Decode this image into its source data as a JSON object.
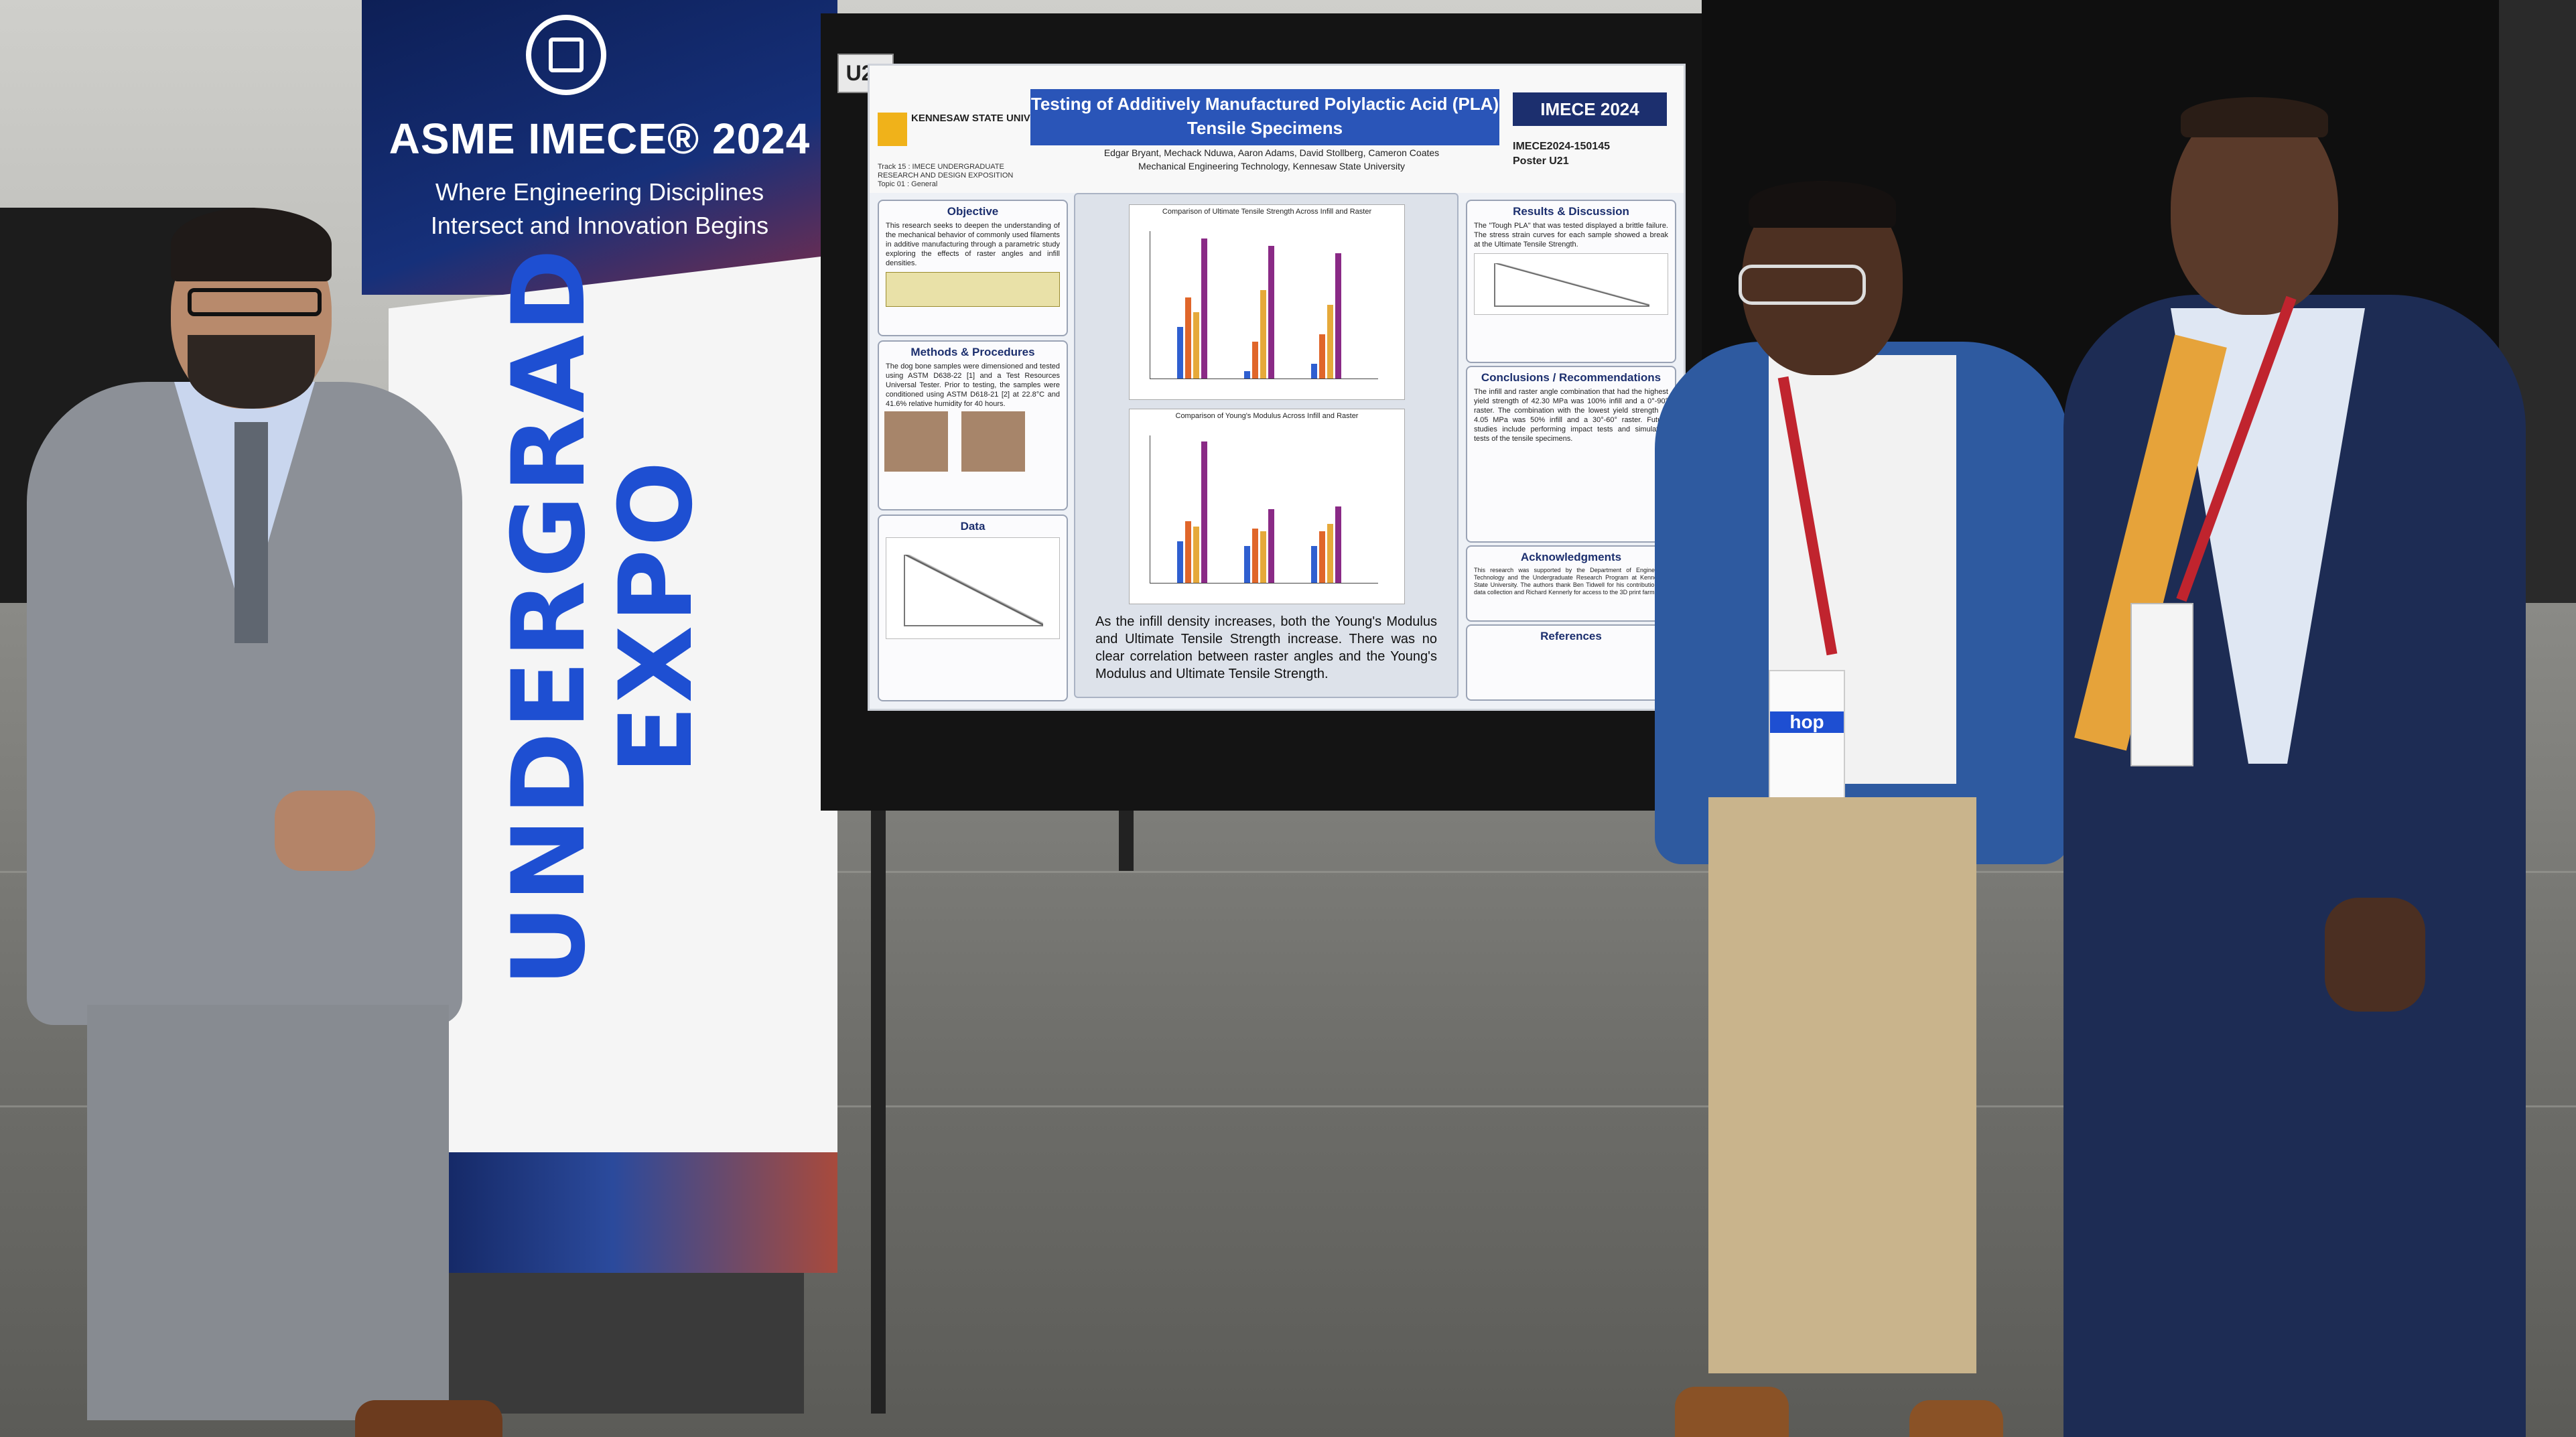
{
  "banner": {
    "conference": "ASME IMECE® 2024",
    "tagline": "Where Engineering Disciplines Intersect and Innovation Begins",
    "vertical_text_line1": "UNDERGRAD",
    "vertical_text_line2": "EXPO",
    "colors": {
      "navy": "#16307a",
      "blue_text": "#1e4fd2",
      "white": "#f5f5f5"
    }
  },
  "board": {
    "tag": "U21"
  },
  "poster": {
    "university": "KENNESAW STATE UNIVERSITY",
    "title": "Testing of Additively Manufactured Polylactic Acid (PLA) Tensile Specimens",
    "conference_badge": "IMECE 2024",
    "authors": "Edgar Bryant, Mechack Nduwa, Aaron Adams, David Stollberg, Cameron Coates",
    "department": "Mechanical Engineering Technology, Kennesaw State University",
    "paper_id": "IMECE2024-150145",
    "poster_id": "Poster U21",
    "track": "Track 15 : IMECE UNDERGRADUATE RESEARCH AND DESIGN EXPOSITION",
    "topic": "Topic 01 : General",
    "sections": {
      "objective_title": "Objective",
      "objective_text": "This research seeks to deepen the understanding of the mechanical behavior of commonly used filaments in additive manufacturing through a parametric study exploring the effects of raster angles and infill densities.",
      "methods_title": "Methods & Procedures",
      "methods_text": "The dog bone samples were dimensioned and tested using ASTM D638-22 [1] and a Test Resources Universal Tester. Prior to testing, the samples were conditioned using ASTM D618-21 [2] at 22.8°C and 41.6% relative humidity for 40 hours.",
      "data_title": "Data",
      "results_title": "Results & Discussion",
      "results_text": "The \"Tough PLA\" that was tested displayed a brittle failure. The stress strain curves for each sample showed a break at the Ultimate Tensile Strength.",
      "conclusions_title": "Conclusions / Recommendations",
      "conclusions_text": "The infill and raster angle combination that had the highest yield strength of 42.30 MPa was 100% infill and a 0°-90° raster. The combination with the lowest yield strength of 4.05 MPa was 50% infill and a 30°-60° raster. Future studies include performing impact tests and simulation tests of the tensile specimens.",
      "ack_title": "Acknowledgments",
      "ack_text": "This research was supported by the Department of Engineering Technology and the Undergraduate Research Program at Kennesaw State University. The authors thank Ben Tidwell for his contributions to data collection and Richard Kennerly for access to the 3D print farm.",
      "references_title": "References"
    },
    "center_text": "As the infill density increases, both the Young's Modulus and Ultimate Tensile Strength increase. There was no clear correlation between raster angles and the Young's Modulus and Ultimate Tensile Strength.",
    "chart1_title": "Comparison of Ultimate Tensile Strength Across Infill and Raster",
    "chart2_title": "Comparison of Young's Modulus Across Infill and Raster",
    "bar_colors": [
      "#2f5fd0",
      "#e0662a",
      "#e6a93a",
      "#8a2a86"
    ]
  },
  "lanyard": {
    "badge_text": "hop"
  }
}
